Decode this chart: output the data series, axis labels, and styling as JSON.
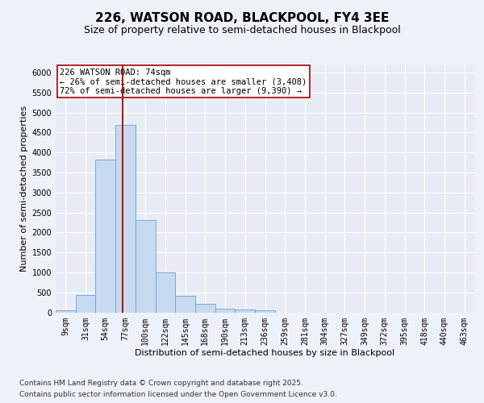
{
  "title1": "226, WATSON ROAD, BLACKPOOL, FY4 3EE",
  "title2": "Size of property relative to semi-detached houses in Blackpool",
  "xlabel": "Distribution of semi-detached houses by size in Blackpool",
  "ylabel": "Number of semi-detached properties",
  "categories": [
    "9sqm",
    "31sqm",
    "54sqm",
    "77sqm",
    "100sqm",
    "122sqm",
    "145sqm",
    "168sqm",
    "190sqm",
    "213sqm",
    "236sqm",
    "259sqm",
    "281sqm",
    "304sqm",
    "327sqm",
    "349sqm",
    "372sqm",
    "395sqm",
    "418sqm",
    "440sqm",
    "463sqm"
  ],
  "values": [
    50,
    440,
    3820,
    4680,
    2300,
    1000,
    410,
    210,
    90,
    70,
    50,
    0,
    0,
    0,
    0,
    0,
    0,
    0,
    0,
    0,
    0
  ],
  "bar_color": "#c8daf0",
  "bar_edge_color": "#6a9fd0",
  "ylim": [
    0,
    6200
  ],
  "yticks": [
    0,
    500,
    1000,
    1500,
    2000,
    2500,
    3000,
    3500,
    4000,
    4500,
    5000,
    5500,
    6000
  ],
  "vline_x": 2.87,
  "vline_color": "#aa0000",
  "annotation_line1": "226 WATSON ROAD: 74sqm",
  "annotation_line2": "← 26% of semi-detached houses are smaller (3,408)",
  "annotation_line3": "72% of semi-detached houses are larger (9,390) →",
  "annotation_box_color": "#ffffff",
  "annotation_box_edge": "#aa0000",
  "footnote1": "Contains HM Land Registry data © Crown copyright and database right 2025.",
  "footnote2": "Contains public sector information licensed under the Open Government Licence v3.0.",
  "bg_color": "#edf1f8",
  "plot_bg_color": "#e8edf5",
  "grid_color": "#ffffff",
  "title1_fontsize": 11,
  "title2_fontsize": 9,
  "axis_label_fontsize": 8,
  "tick_fontsize": 7,
  "annotation_fontsize": 7.5,
  "footnote_fontsize": 6.5
}
